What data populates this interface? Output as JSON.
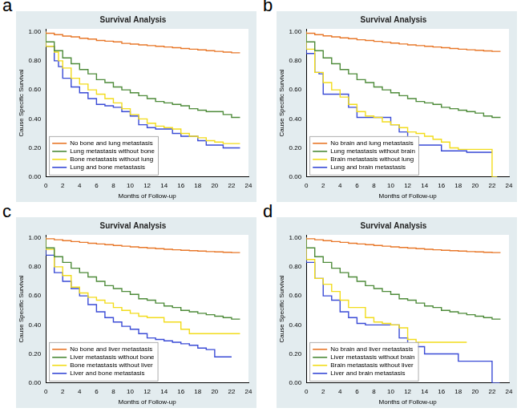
{
  "chart_data": [
    {
      "panel": "a",
      "type": "line",
      "title": "Survival Analysis",
      "x_label": "Months of Follow-up",
      "y_label": "Cause Specific Survival",
      "xlim": [
        0,
        24
      ],
      "xticks": [
        0,
        2,
        4,
        6,
        8,
        10,
        12,
        14,
        16,
        18,
        20,
        22,
        24
      ],
      "ylim": [
        0,
        1.02
      ],
      "yticks": [
        {
          "value": 0,
          "label": "0.00"
        },
        {
          "value": 0.2,
          "label": "0.20"
        },
        {
          "value": 0.4,
          "label": "0.40"
        },
        {
          "value": 0.6,
          "label": "0.60"
        },
        {
          "value": 0.8,
          "label": "0.80"
        },
        {
          "value": 1,
          "label": "1.00"
        }
      ],
      "grid": false,
      "legend": "lower left",
      "line_style": "steps",
      "series": [
        {
          "name": "No bone and lung metastasis",
          "color": "#e8782a",
          "x": [
            0,
            1,
            2,
            3,
            4,
            5,
            6,
            7,
            8,
            9,
            10,
            11,
            12,
            13,
            14,
            15,
            16,
            17,
            18,
            19,
            20,
            21,
            22,
            23
          ],
          "values": [
            1,
            0.99,
            0.98,
            0.97,
            0.965,
            0.955,
            0.95,
            0.94,
            0.935,
            0.93,
            0.92,
            0.915,
            0.91,
            0.905,
            0.9,
            0.895,
            0.89,
            0.885,
            0.88,
            0.875,
            0.87,
            0.865,
            0.86,
            0.855
          ]
        },
        {
          "name": "Lung metastasis without bone",
          "color": "#4e8b3a",
          "x": [
            0,
            1,
            2,
            3,
            4,
            5,
            6,
            7,
            8,
            9,
            10,
            11,
            12,
            13,
            14,
            15,
            16,
            17,
            18,
            19,
            20,
            21,
            22,
            23
          ],
          "values": [
            1,
            0.93,
            0.87,
            0.82,
            0.78,
            0.74,
            0.71,
            0.67,
            0.65,
            0.62,
            0.6,
            0.58,
            0.56,
            0.54,
            0.52,
            0.51,
            0.5,
            0.49,
            0.47,
            0.46,
            0.45,
            0.45,
            0.43,
            0.41
          ]
        },
        {
          "name": "Bone metastasis without lung",
          "color": "#f2dc1b",
          "x": [
            0,
            1,
            1.5,
            2,
            3,
            4,
            5,
            6,
            7,
            8,
            9,
            10,
            11,
            12,
            13,
            14,
            15,
            16,
            17,
            18,
            19,
            20,
            21,
            22,
            23
          ],
          "values": [
            1,
            0.9,
            0.86,
            0.8,
            0.75,
            0.68,
            0.64,
            0.6,
            0.57,
            0.54,
            0.51,
            0.47,
            0.43,
            0.4,
            0.37,
            0.35,
            0.34,
            0.33,
            0.3,
            0.28,
            0.27,
            0.25,
            0.24,
            0.23,
            0.23
          ]
        },
        {
          "name": "Lung and bone metastasis",
          "color": "#3a4bd6",
          "x": [
            0,
            1,
            1.5,
            2,
            3,
            4,
            5,
            6,
            7,
            8,
            9,
            10,
            11,
            12,
            13,
            15,
            16,
            18,
            19,
            20,
            21,
            22,
            23
          ],
          "values": [
            1,
            0.9,
            0.8,
            0.76,
            0.68,
            0.62,
            0.58,
            0.54,
            0.5,
            0.49,
            0.48,
            0.45,
            0.42,
            0.36,
            0.34,
            0.33,
            0.3,
            0.28,
            0.25,
            0.22,
            0.22,
            0.2,
            0.2
          ]
        }
      ]
    },
    {
      "panel": "b",
      "type": "line",
      "title": "Survival Analysis",
      "x_label": "Months of Follow-up",
      "y_label": "Cause Specific Survival",
      "xlim": [
        0,
        24
      ],
      "xticks": [
        0,
        2,
        4,
        6,
        8,
        10,
        12,
        14,
        16,
        18,
        20,
        22,
        24
      ],
      "ylim": [
        0,
        1.02
      ],
      "yticks": [
        {
          "value": 0,
          "label": "0.00"
        },
        {
          "value": 0.2,
          "label": "0.20"
        },
        {
          "value": 0.4,
          "label": "0.40"
        },
        {
          "value": 0.6,
          "label": "0.60"
        },
        {
          "value": 0.8,
          "label": "0.80"
        },
        {
          "value": 1,
          "label": "1.00"
        }
      ],
      "grid": false,
      "legend": "lower left",
      "line_style": "steps",
      "series": [
        {
          "name": "No brain and lung metastasis",
          "color": "#e8782a",
          "x": [
            0,
            1,
            2,
            3,
            4,
            5,
            6,
            7,
            8,
            9,
            10,
            11,
            12,
            13,
            14,
            15,
            16,
            17,
            18,
            19,
            20,
            21,
            22,
            23
          ],
          "values": [
            1,
            0.99,
            0.98,
            0.972,
            0.965,
            0.958,
            0.952,
            0.945,
            0.94,
            0.934,
            0.928,
            0.922,
            0.916,
            0.91,
            0.905,
            0.9,
            0.895,
            0.89,
            0.885,
            0.88,
            0.876,
            0.872,
            0.868,
            0.865
          ]
        },
        {
          "name": "Lung metastasis without brain",
          "color": "#4e8b3a",
          "x": [
            0,
            1,
            2,
            3,
            4,
            5,
            6,
            7,
            8,
            9,
            10,
            11,
            12,
            13,
            14,
            15,
            16,
            17,
            18,
            19,
            20,
            21,
            22,
            23
          ],
          "values": [
            1,
            0.93,
            0.87,
            0.82,
            0.78,
            0.74,
            0.71,
            0.67,
            0.65,
            0.62,
            0.6,
            0.58,
            0.56,
            0.54,
            0.52,
            0.51,
            0.5,
            0.48,
            0.47,
            0.46,
            0.45,
            0.44,
            0.42,
            0.41
          ]
        },
        {
          "name": "Brain metastasis without lung",
          "color": "#f2dc1b",
          "x": [
            0,
            1,
            2,
            3,
            4,
            5,
            6,
            7,
            8,
            9,
            10,
            11,
            12,
            13,
            14,
            15,
            16,
            17,
            18,
            20,
            22,
            22.6
          ],
          "values": [
            1,
            0.88,
            0.72,
            0.65,
            0.6,
            0.55,
            0.5,
            0.45,
            0.42,
            0.41,
            0.38,
            0.36,
            0.34,
            0.31,
            0.3,
            0.28,
            0.26,
            0.24,
            0.2,
            0.19,
            0.19,
            0
          ]
        },
        {
          "name": "Lung and brain metastasis",
          "color": "#3a4bd6",
          "x": [
            0,
            1,
            1.5,
            2,
            3,
            5,
            6,
            7,
            10,
            11,
            12,
            13,
            16,
            19,
            20,
            22
          ],
          "values": [
            1,
            0.85,
            0.72,
            0.71,
            0.57,
            0.57,
            0.48,
            0.41,
            0.41,
            0.36,
            0.31,
            0.27,
            0.22,
            0.18,
            0.17,
            0.17
          ]
        }
      ]
    },
    {
      "panel": "c",
      "type": "line",
      "title": "Survival Analysis",
      "x_label": "Months of Follow-up",
      "y_label": "Cause Specific Survival",
      "xlim": [
        0,
        24
      ],
      "xticks": [
        0,
        2,
        4,
        6,
        8,
        10,
        12,
        14,
        16,
        18,
        20,
        22,
        24
      ],
      "ylim": [
        0,
        1.02
      ],
      "yticks": [
        {
          "value": 0,
          "label": "0.00"
        },
        {
          "value": 0.2,
          "label": "0.20"
        },
        {
          "value": 0.4,
          "label": "0.40"
        },
        {
          "value": 0.6,
          "label": "0.60"
        },
        {
          "value": 0.8,
          "label": "0.80"
        },
        {
          "value": 1,
          "label": "1.00"
        }
      ],
      "grid": false,
      "legend": "lower left",
      "line_style": "steps",
      "series": [
        {
          "name": "No bone and liver metastasis",
          "color": "#e8782a",
          "x": [
            0,
            1,
            2,
            3,
            4,
            5,
            6,
            7,
            8,
            9,
            10,
            11,
            12,
            13,
            14,
            15,
            16,
            17,
            18,
            19,
            20,
            21,
            22,
            23
          ],
          "values": [
            1,
            0.993,
            0.986,
            0.98,
            0.974,
            0.968,
            0.962,
            0.957,
            0.952,
            0.947,
            0.942,
            0.937,
            0.933,
            0.929,
            0.925,
            0.921,
            0.917,
            0.914,
            0.911,
            0.908,
            0.905,
            0.903,
            0.9,
            0.898
          ]
        },
        {
          "name": "Liver metastasis without bone",
          "color": "#4e8b3a",
          "x": [
            0,
            1,
            2,
            3,
            4,
            5,
            6,
            7,
            8,
            9,
            10,
            11,
            12,
            13,
            14,
            15,
            16,
            17,
            18,
            19,
            20,
            21,
            22,
            23
          ],
          "values": [
            1,
            0.93,
            0.87,
            0.83,
            0.79,
            0.76,
            0.73,
            0.7,
            0.67,
            0.65,
            0.63,
            0.61,
            0.58,
            0.57,
            0.55,
            0.53,
            0.52,
            0.5,
            0.49,
            0.48,
            0.47,
            0.46,
            0.45,
            0.44
          ]
        },
        {
          "name": "Bone metastasis without liver",
          "color": "#f2dc1b",
          "x": [
            0,
            1,
            2,
            3,
            4,
            5,
            6,
            7,
            8,
            9,
            10,
            11,
            12,
            14,
            16,
            17,
            18,
            23
          ],
          "values": [
            1,
            0.92,
            0.8,
            0.74,
            0.66,
            0.62,
            0.59,
            0.57,
            0.55,
            0.52,
            0.5,
            0.48,
            0.46,
            0.45,
            0.42,
            0.37,
            0.34,
            0.34
          ]
        },
        {
          "name": "Liver and bone metastasis",
          "color": "#3a4bd6",
          "x": [
            0,
            1,
            2,
            3,
            4,
            5,
            6,
            7,
            8,
            9,
            10,
            11,
            12,
            13,
            14,
            15,
            16,
            17,
            18,
            19,
            20,
            21,
            22
          ],
          "values": [
            1,
            0.88,
            0.76,
            0.7,
            0.65,
            0.6,
            0.54,
            0.49,
            0.45,
            0.42,
            0.39,
            0.37,
            0.34,
            0.31,
            0.3,
            0.29,
            0.28,
            0.27,
            0.26,
            0.24,
            0.23,
            0.18,
            0.18
          ]
        }
      ]
    },
    {
      "panel": "d",
      "type": "line",
      "title": "Survival Analysis",
      "x_label": "Months of Follow-up",
      "y_label": "Cause Specific Survival",
      "xlim": [
        0,
        24
      ],
      "xticks": [
        0,
        2,
        4,
        6,
        8,
        10,
        12,
        14,
        16,
        18,
        20,
        22,
        24
      ],
      "ylim": [
        0,
        1.02
      ],
      "yticks": [
        {
          "value": 0,
          "label": "0.00"
        },
        {
          "value": 0.2,
          "label": "0.20"
        },
        {
          "value": 0.4,
          "label": "0.40"
        },
        {
          "value": 0.6,
          "label": "0.60"
        },
        {
          "value": 0.8,
          "label": "0.80"
        },
        {
          "value": 1,
          "label": "1.00"
        }
      ],
      "grid": false,
      "legend": "lower left",
      "line_style": "steps",
      "series": [
        {
          "name": "No brain and liver metastasis",
          "color": "#e8782a",
          "x": [
            0,
            1,
            2,
            3,
            4,
            5,
            6,
            7,
            8,
            9,
            10,
            11,
            12,
            13,
            14,
            15,
            16,
            17,
            18,
            19,
            20,
            21,
            22,
            23
          ],
          "values": [
            1,
            0.993,
            0.986,
            0.98,
            0.974,
            0.968,
            0.962,
            0.957,
            0.952,
            0.947,
            0.942,
            0.937,
            0.933,
            0.929,
            0.925,
            0.921,
            0.917,
            0.914,
            0.911,
            0.908,
            0.905,
            0.903,
            0.9,
            0.898
          ]
        },
        {
          "name": "Liver metastasis without brain",
          "color": "#4e8b3a",
          "x": [
            0,
            1,
            2,
            3,
            4,
            5,
            6,
            7,
            8,
            9,
            10,
            11,
            12,
            13,
            14,
            15,
            16,
            17,
            18,
            19,
            20,
            21,
            22,
            23
          ],
          "values": [
            1,
            0.93,
            0.87,
            0.83,
            0.79,
            0.76,
            0.73,
            0.7,
            0.67,
            0.65,
            0.63,
            0.61,
            0.58,
            0.57,
            0.55,
            0.53,
            0.52,
            0.5,
            0.49,
            0.48,
            0.47,
            0.46,
            0.45,
            0.44
          ]
        },
        {
          "name": "Brain metastasis without liver",
          "color": "#f2dc1b",
          "x": [
            0,
            1,
            2,
            3,
            4,
            5,
            7,
            8,
            9,
            10,
            11,
            12,
            13,
            15,
            17,
            19
          ],
          "values": [
            1,
            0.85,
            0.72,
            0.68,
            0.63,
            0.57,
            0.52,
            0.45,
            0.42,
            0.41,
            0.4,
            0.38,
            0.3,
            0.28,
            0.28,
            0.28
          ]
        },
        {
          "name": "Liver and brain metastasis",
          "color": "#3a4bd6",
          "x": [
            0,
            1,
            2,
            3,
            4,
            5,
            6,
            7,
            8,
            11,
            12,
            13,
            14,
            18,
            19,
            21,
            22,
            22.9
          ],
          "values": [
            1,
            0.83,
            0.72,
            0.6,
            0.57,
            0.49,
            0.45,
            0.41,
            0.4,
            0.4,
            0.31,
            0.27,
            0.25,
            0.2,
            0.15,
            0.15,
            0.15,
            0
          ]
        }
      ]
    }
  ]
}
